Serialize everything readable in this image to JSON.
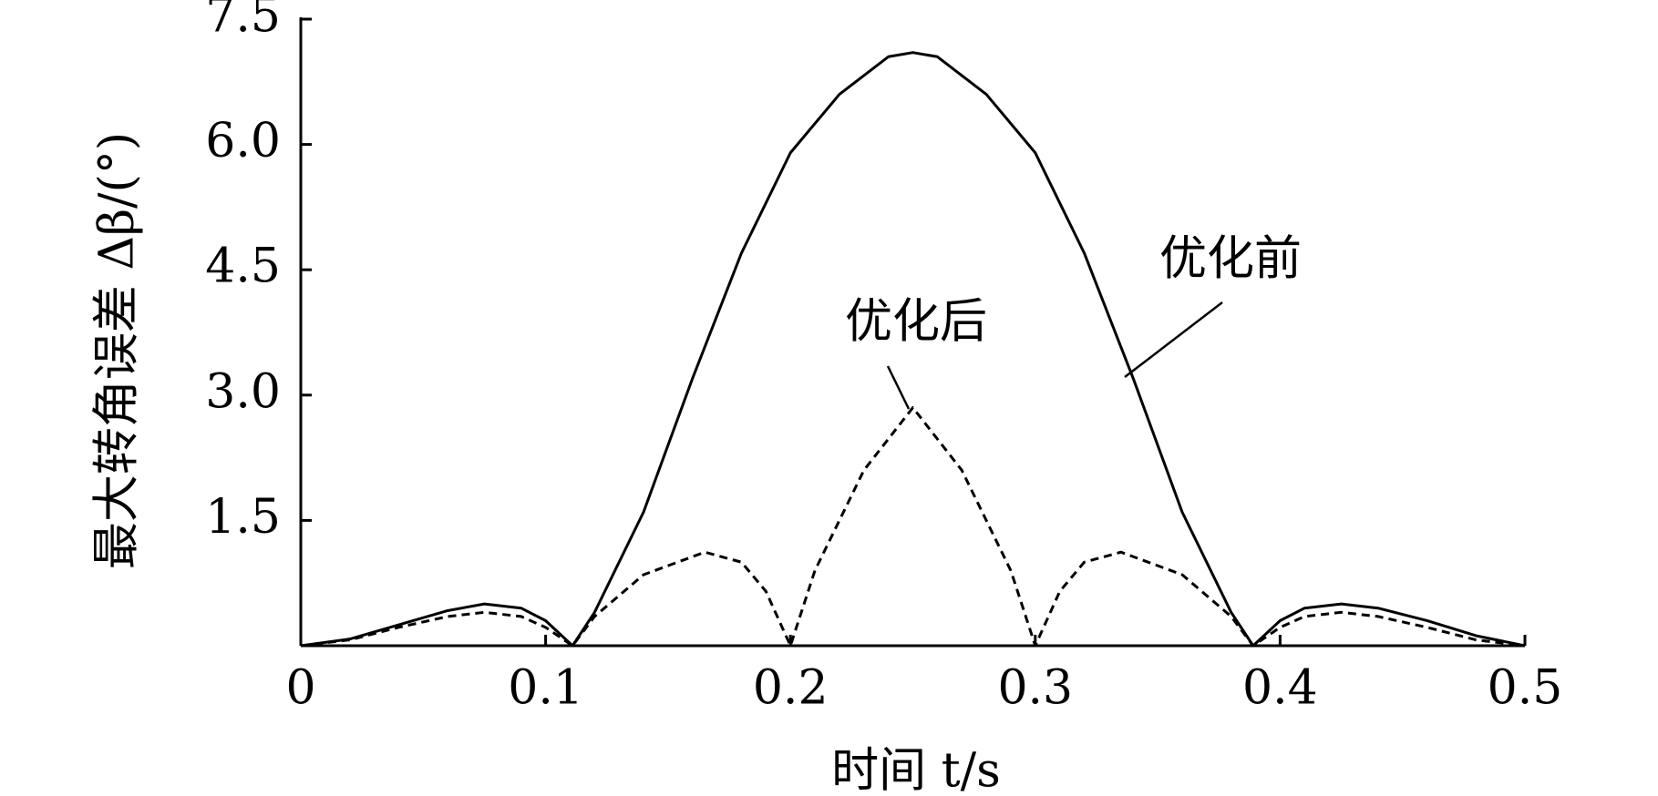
{
  "chart_data": {
    "type": "line",
    "xlabel": "时间 t/s",
    "ylabel": "最大转角误差 Δβ/(°)",
    "xlim": [
      0,
      0.5
    ],
    "ylim": [
      0,
      7.5
    ],
    "xticks": [
      0,
      0.1,
      0.2,
      0.3,
      0.4,
      0.5
    ],
    "yticks": [
      1.5,
      {
        "value": 3,
        "label": "3.0"
      },
      4.5,
      {
        "value": 6,
        "label": "6.0"
      },
      7.5
    ],
    "annotations": [
      "优化前",
      "优化后"
    ],
    "series": [
      {
        "name": "优化前",
        "color": "#000000",
        "dash": "solid",
        "x": [
          0,
          0.02,
          0.04,
          0.06,
          0.075,
          0.09,
          0.1,
          0.111,
          0.12,
          0.14,
          0.16,
          0.18,
          0.2,
          0.22,
          0.24,
          0.25,
          0.26,
          0.28,
          0.3,
          0.32,
          0.34,
          0.36,
          0.38,
          0.389,
          0.4,
          0.41,
          0.425,
          0.44,
          0.46,
          0.48,
          0.5
        ],
        "values": [
          0,
          0.08,
          0.25,
          0.42,
          0.5,
          0.45,
          0.3,
          0,
          0.4,
          1.6,
          3.2,
          4.7,
          5.9,
          6.6,
          7.05,
          7.1,
          7.05,
          6.6,
          5.9,
          4.7,
          3.2,
          1.6,
          0.4,
          0,
          0.3,
          0.45,
          0.5,
          0.45,
          0.3,
          0.12,
          0
        ]
      },
      {
        "name": "优化后",
        "color": "#000000",
        "dash": "dashed",
        "x": [
          0,
          0.02,
          0.04,
          0.06,
          0.075,
          0.09,
          0.1,
          0.111,
          0.12,
          0.14,
          0.165,
          0.18,
          0.19,
          0.2,
          0.21,
          0.23,
          0.25,
          0.27,
          0.29,
          0.3,
          0.31,
          0.32,
          0.335,
          0.36,
          0.38,
          0.389,
          0.4,
          0.41,
          0.425,
          0.44,
          0.46,
          0.48,
          0.5
        ],
        "values": [
          0,
          0.07,
          0.22,
          0.35,
          0.4,
          0.35,
          0.22,
          0,
          0.35,
          0.85,
          1.12,
          1.0,
          0.65,
          0,
          0.9,
          2.1,
          2.85,
          2.1,
          0.9,
          0,
          0.65,
          1.0,
          1.12,
          0.85,
          0.35,
          0,
          0.22,
          0.35,
          0.4,
          0.35,
          0.22,
          0.07,
          0
        ]
      }
    ]
  }
}
